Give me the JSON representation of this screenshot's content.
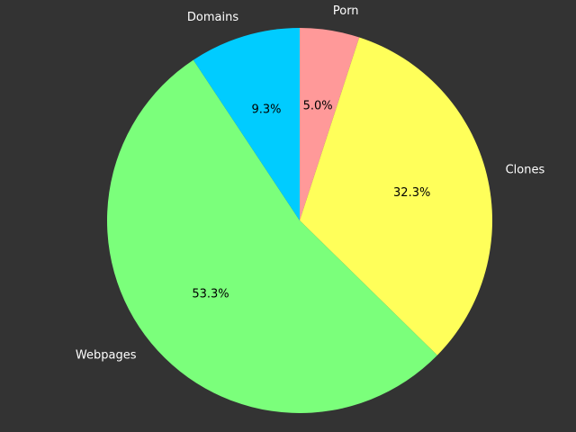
{
  "chart_data": {
    "type": "pie",
    "title": "",
    "start_angle_deg": 90,
    "direction": "clockwise",
    "legend": "none",
    "slices": [
      {
        "label": "Porn",
        "value": 5.0,
        "pct_label": "5.0%",
        "color": "#ff9999"
      },
      {
        "label": "Clones",
        "value": 32.3,
        "pct_label": "32.3%",
        "color": "#ffff5a"
      },
      {
        "label": "Webpages",
        "value": 53.3,
        "pct_label": "53.3%",
        "color": "#7bff7b"
      },
      {
        "label": "Domains",
        "value": 9.3,
        "pct_label": "9.3%",
        "color": "#00ccff"
      }
    ]
  },
  "colors": {
    "background": "#333333",
    "outer_label": "#ffffff",
    "inner_label": "#000000"
  }
}
